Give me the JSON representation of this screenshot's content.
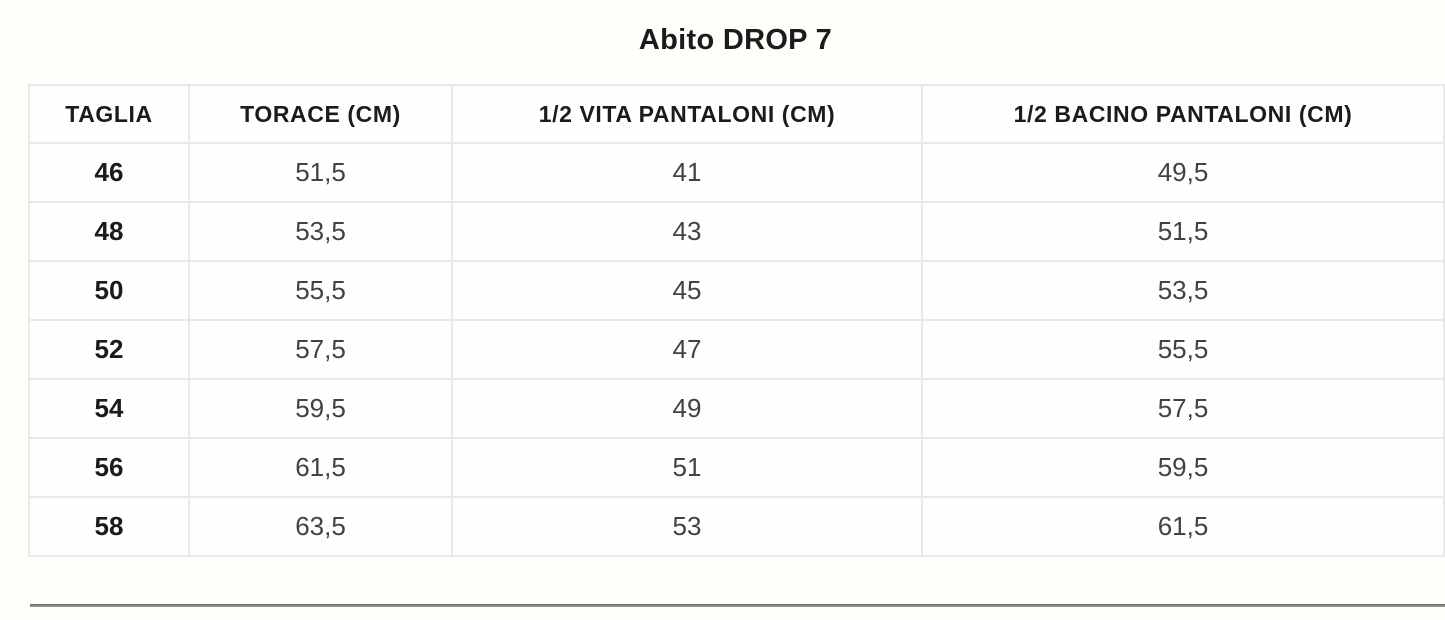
{
  "title": "Abito DROP 7",
  "table": {
    "headers": [
      "TAGLIA",
      "TORACE (CM)",
      "1/2 VITA PANTALONI (CM)",
      "1/2 BACINO PANTALONI (CM)"
    ],
    "rows": [
      [
        "46",
        "51,5",
        "41",
        "49,5"
      ],
      [
        "48",
        "53,5",
        "43",
        "51,5"
      ],
      [
        "50",
        "55,5",
        "45",
        "53,5"
      ],
      [
        "52",
        "57,5",
        "47",
        "55,5"
      ],
      [
        "54",
        "59,5",
        "49",
        "57,5"
      ],
      [
        "56",
        "61,5",
        "51",
        "59,5"
      ],
      [
        "58",
        "63,5",
        "53",
        "61,5"
      ]
    ]
  },
  "colors": {
    "background": "#fffefa",
    "heading_text": "#1b1b1b",
    "cell_text": "#424242",
    "grid_border": "#e7e9ea",
    "bottom_rule": "#8d8d88"
  }
}
